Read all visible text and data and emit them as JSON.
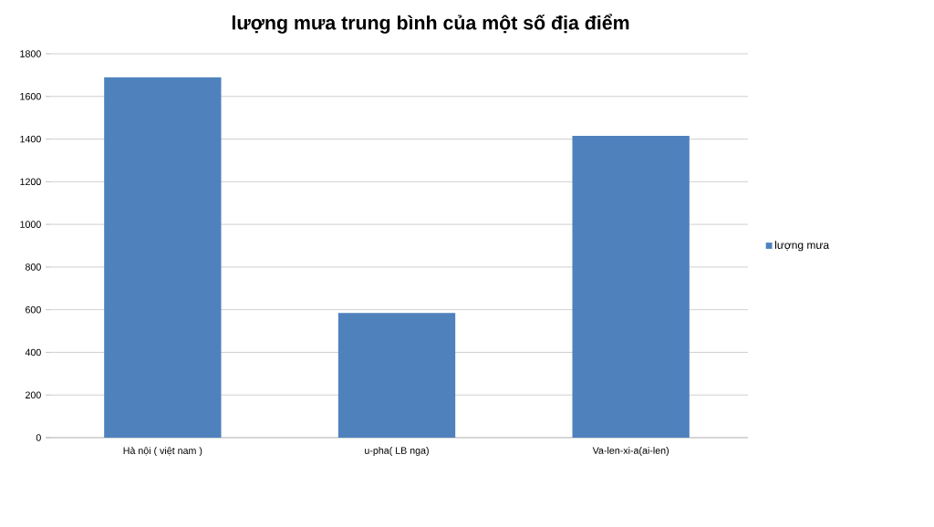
{
  "chart_data": {
    "type": "bar",
    "title": "lượng mưa trung bình của một số địa điểm",
    "categories": [
      "Hà nội ( việt nam )",
      "u-pha( LB nga)",
      "Va-len-xi-a(ai-len)"
    ],
    "series": [
      {
        "name": "lượng mưa",
        "color": "#4f81bd",
        "values": [
          1690,
          585,
          1415
        ]
      }
    ],
    "ylim": [
      0,
      1800
    ],
    "yticks": [
      0,
      200,
      400,
      600,
      800,
      1000,
      1200,
      1400,
      1600,
      1800
    ],
    "grid": "y",
    "legend": "right"
  }
}
